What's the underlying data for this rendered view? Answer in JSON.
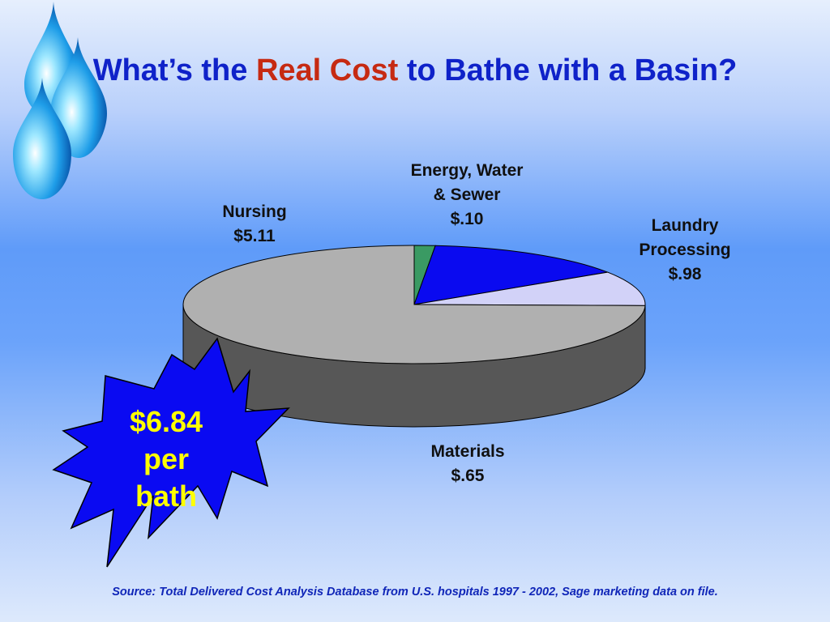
{
  "title": {
    "prefix": "What’s the",
    "accent": "Real Cost",
    "suffix": "to Bathe with a Basin?"
  },
  "chart_data": {
    "type": "pie",
    "style": "3d",
    "slices": [
      {
        "name": "Energy, Water & Sewer",
        "label_lines": [
          "Energy, Water",
          "& Sewer",
          "$.10"
        ],
        "value": 0.1,
        "color": "#3a9a63",
        "side_color": "#2a7048"
      },
      {
        "name": "Laundry Processing",
        "label_lines": [
          "Laundry",
          "Processing",
          "$.98"
        ],
        "value": 0.98,
        "color": "#0a0af0",
        "side_color": "#000080"
      },
      {
        "name": "Materials",
        "label_lines": [
          "Materials",
          "$.65"
        ],
        "value": 0.65,
        "color": "#d2d2f8",
        "side_color": "#676785"
      },
      {
        "name": "Nursing",
        "label_lines": [
          "Nursing",
          "$5.11"
        ],
        "value": 5.11,
        "color": "#b0b0b0",
        "side_color": "#575757"
      }
    ]
  },
  "callout": {
    "lines": [
      "$6.84",
      "per",
      "bath"
    ],
    "fill": "#0a0af2",
    "text_color": "#ffff00"
  },
  "source": "Source: Total Delivered Cost Analysis Database from U.S.  hospitals 1997 - 2002, Sage marketing data on file."
}
